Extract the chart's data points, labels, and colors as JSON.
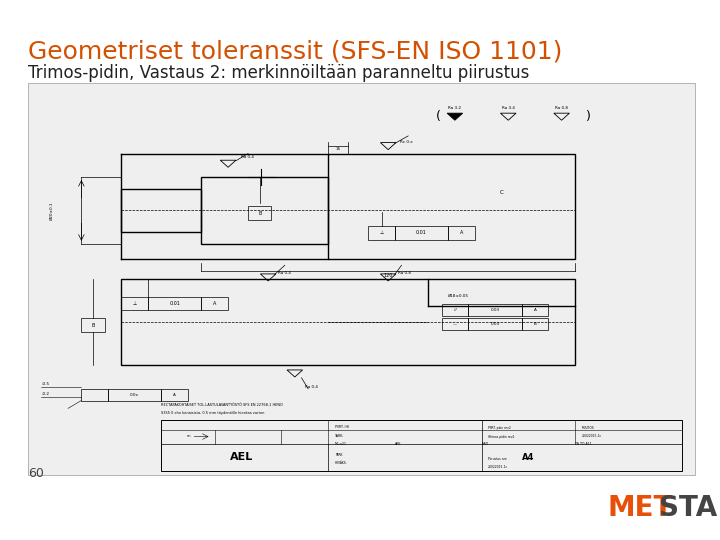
{
  "title": "Geometriset toleranssit (SFS-EN ISO 1101)",
  "subtitle": "Trimos-pidin, Vastaus 2: merkinnöiltään paranneltu piirustus",
  "page_number": "60",
  "title_color": "#D45000",
  "subtitle_color": "#222222",
  "background_color": "#FFFFFF",
  "title_fontsize": 18,
  "subtitle_fontsize": 12,
  "page_fontsize": 9,
  "metsta_met_color": "#E8500A",
  "metsta_sta_color": "#444444",
  "drawing_bg": "#EFEFEF",
  "drawing_border_color": "#999999"
}
